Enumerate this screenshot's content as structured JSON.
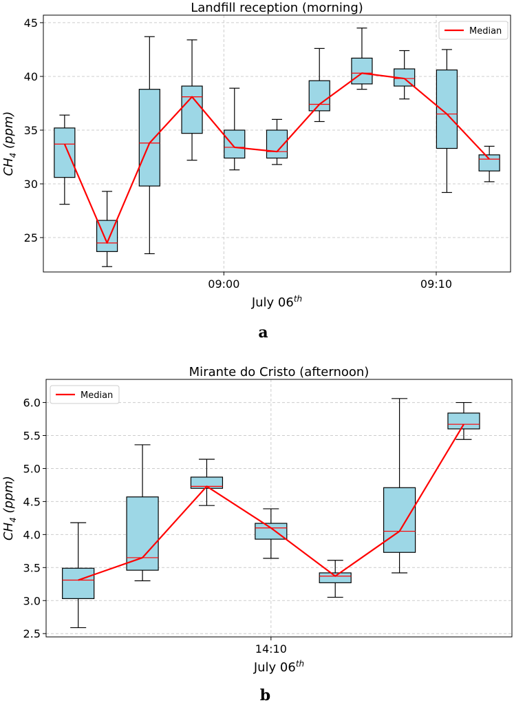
{
  "colors": {
    "box_fill": "#9dd7e6",
    "median": "#ff0000",
    "whisker": "#000000",
    "grid": "#cccccc"
  },
  "chart_data": [
    {
      "type": "box",
      "panel_label": "a",
      "title": "Landfill reception (morning)",
      "xlabel_main": "July 06",
      "xlabel_sup": "th",
      "ylabel_main": "CH",
      "ylabel_sub": "4",
      "ylabel_unit": " (ppm)",
      "ylim": [
        21.8,
        45.7
      ],
      "yticks": [
        25,
        30,
        35,
        40,
        45
      ],
      "xticks": [
        {
          "label": "09:00",
          "index": 8.5
        },
        {
          "label": "09:10",
          "index": 18.5
        }
      ],
      "legend": {
        "label": "Median",
        "loc": "upper right"
      },
      "boxes": [
        {
          "index": 1,
          "min": 28.1,
          "q1": 30.6,
          "median": 33.7,
          "q3": 35.2,
          "max": 36.4
        },
        {
          "index": 3,
          "min": 22.3,
          "q1": 23.7,
          "median": 24.5,
          "q3": 26.6,
          "max": 29.3
        },
        {
          "index": 5,
          "min": 23.5,
          "q1": 29.8,
          "median": 33.8,
          "q3": 38.8,
          "max": 43.7
        },
        {
          "index": 7,
          "min": 32.2,
          "q1": 34.7,
          "median": 38.1,
          "q3": 39.1,
          "max": 43.4
        },
        {
          "index": 9,
          "min": 31.3,
          "q1": 32.4,
          "median": 33.4,
          "q3": 35.0,
          "max": 38.9
        },
        {
          "index": 11,
          "min": 31.8,
          "q1": 32.4,
          "median": 33.0,
          "q3": 35.0,
          "max": 36.0
        },
        {
          "index": 13,
          "min": 35.8,
          "q1": 36.8,
          "median": 37.4,
          "q3": 39.6,
          "max": 42.6
        },
        {
          "index": 15,
          "min": 38.8,
          "q1": 39.3,
          "median": 40.3,
          "q3": 41.7,
          "max": 44.5
        },
        {
          "index": 17,
          "min": 37.9,
          "q1": 39.1,
          "median": 39.8,
          "q3": 40.7,
          "max": 42.4
        },
        {
          "index": 19,
          "min": 29.2,
          "q1": 33.3,
          "median": 36.5,
          "q3": 40.6,
          "max": 42.5
        },
        {
          "index": 21,
          "min": 30.2,
          "q1": 31.2,
          "median": 32.3,
          "q3": 32.7,
          "max": 33.5
        }
      ],
      "xlim": [
        0,
        22
      ]
    },
    {
      "type": "box",
      "panel_label": "b",
      "title": "Mirante do Cristo (afternoon)",
      "xlabel_main": "July 06",
      "xlabel_sup": "th",
      "ylabel_main": "CH",
      "ylabel_sub": "4",
      "ylabel_unit": " (ppm)",
      "ylim": [
        2.45,
        6.35
      ],
      "yticks": [
        2.5,
        3.0,
        3.5,
        4.0,
        4.5,
        5.0,
        5.5,
        6.0
      ],
      "yticks_fmt": 1,
      "xticks": [
        {
          "label": "14:10",
          "index": 7
        }
      ],
      "legend": {
        "label": "Median",
        "loc": "upper left"
      },
      "boxes": [
        {
          "index": 1,
          "min": 2.59,
          "q1": 3.03,
          "median": 3.31,
          "q3": 3.49,
          "max": 4.18
        },
        {
          "index": 3,
          "min": 3.3,
          "q1": 3.46,
          "median": 3.65,
          "q3": 4.57,
          "max": 5.36
        },
        {
          "index": 5,
          "min": 4.44,
          "q1": 4.7,
          "median": 4.73,
          "q3": 4.87,
          "max": 5.14
        },
        {
          "index": 7,
          "min": 3.64,
          "q1": 3.93,
          "median": 4.1,
          "q3": 4.17,
          "max": 4.39
        },
        {
          "index": 9,
          "min": 3.05,
          "q1": 3.27,
          "median": 3.37,
          "q3": 3.42,
          "max": 3.61
        },
        {
          "index": 11,
          "min": 3.42,
          "q1": 3.73,
          "median": 4.05,
          "q3": 4.71,
          "max": 6.06
        },
        {
          "index": 13,
          "min": 5.44,
          "q1": 5.6,
          "median": 5.67,
          "q3": 5.84,
          "max": 6.0
        }
      ],
      "xlim": [
        0,
        14.5
      ]
    }
  ]
}
